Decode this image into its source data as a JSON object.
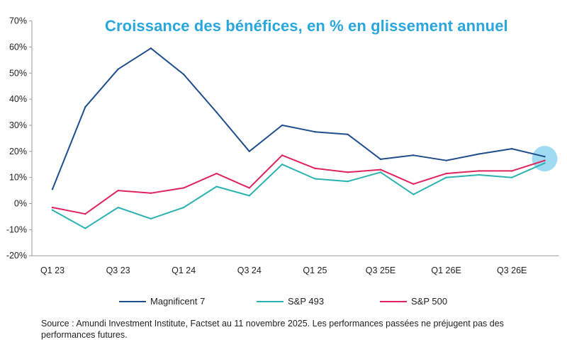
{
  "colors": {
    "title": "#29A6DC",
    "magnificent7": "#1F4E8C",
    "sp493": "#2BB3B1",
    "sp500": "#E0245E",
    "highlight": "#7FD0F0",
    "axis": "#9A9A9A"
  },
  "legend": [
    {
      "label": "Magnificent 7",
      "color": "#1F4E8C"
    },
    {
      "label": "S&P 493",
      "color": "#2BB3B1"
    },
    {
      "label": "S&P 500",
      "color": "#E0245E"
    }
  ],
  "source": "Source : Amundi Investment Institute, Factset au 11 novembre 2025. Les performances passées ne préjugent pas des performances futures.",
  "chart_data": {
    "type": "line",
    "title": "Croissance des bénéfices, en % en glissement annuel",
    "xlabel": "",
    "ylabel": "",
    "ylim": [
      -20,
      70
    ],
    "yticks": [
      -20,
      -10,
      0,
      10,
      20,
      30,
      40,
      50,
      60,
      70
    ],
    "ytick_labels": [
      "-20%",
      "-10%",
      "0%",
      "10%",
      "20%",
      "30%",
      "40%",
      "50%",
      "60%",
      "70%"
    ],
    "x_tick_labels": [
      "Q1 23",
      "Q3 23",
      "Q1 24",
      "Q3 24",
      "Q1 25",
      "Q3 25E",
      "Q1 26E",
      "Q3 26E"
    ],
    "x_tick_every": 2,
    "num_points": 16,
    "grid": false,
    "legend_position": "bottom",
    "series": [
      {
        "name": "Magnificent 7",
        "values": [
          5.5,
          37,
          51.5,
          59.5,
          49.5,
          35,
          20,
          30,
          27.5,
          26.5,
          17,
          18.5,
          16.5,
          19,
          21,
          18
        ]
      },
      {
        "name": "S&P 493",
        "values": [
          -2.5,
          -9.5,
          -1.5,
          -5.8,
          -1.5,
          6.5,
          3,
          15,
          9.5,
          8.5,
          12,
          3.5,
          10,
          11,
          10,
          15.5
        ]
      },
      {
        "name": "S&P 500",
        "values": [
          -1.5,
          -4,
          5,
          4,
          6,
          11.5,
          6,
          18.5,
          13.5,
          12,
          13,
          7.5,
          11.5,
          12.5,
          12.5,
          16.5
        ]
      }
    ],
    "highlight_point": {
      "series": "Magnificent 7",
      "index": 15
    }
  }
}
